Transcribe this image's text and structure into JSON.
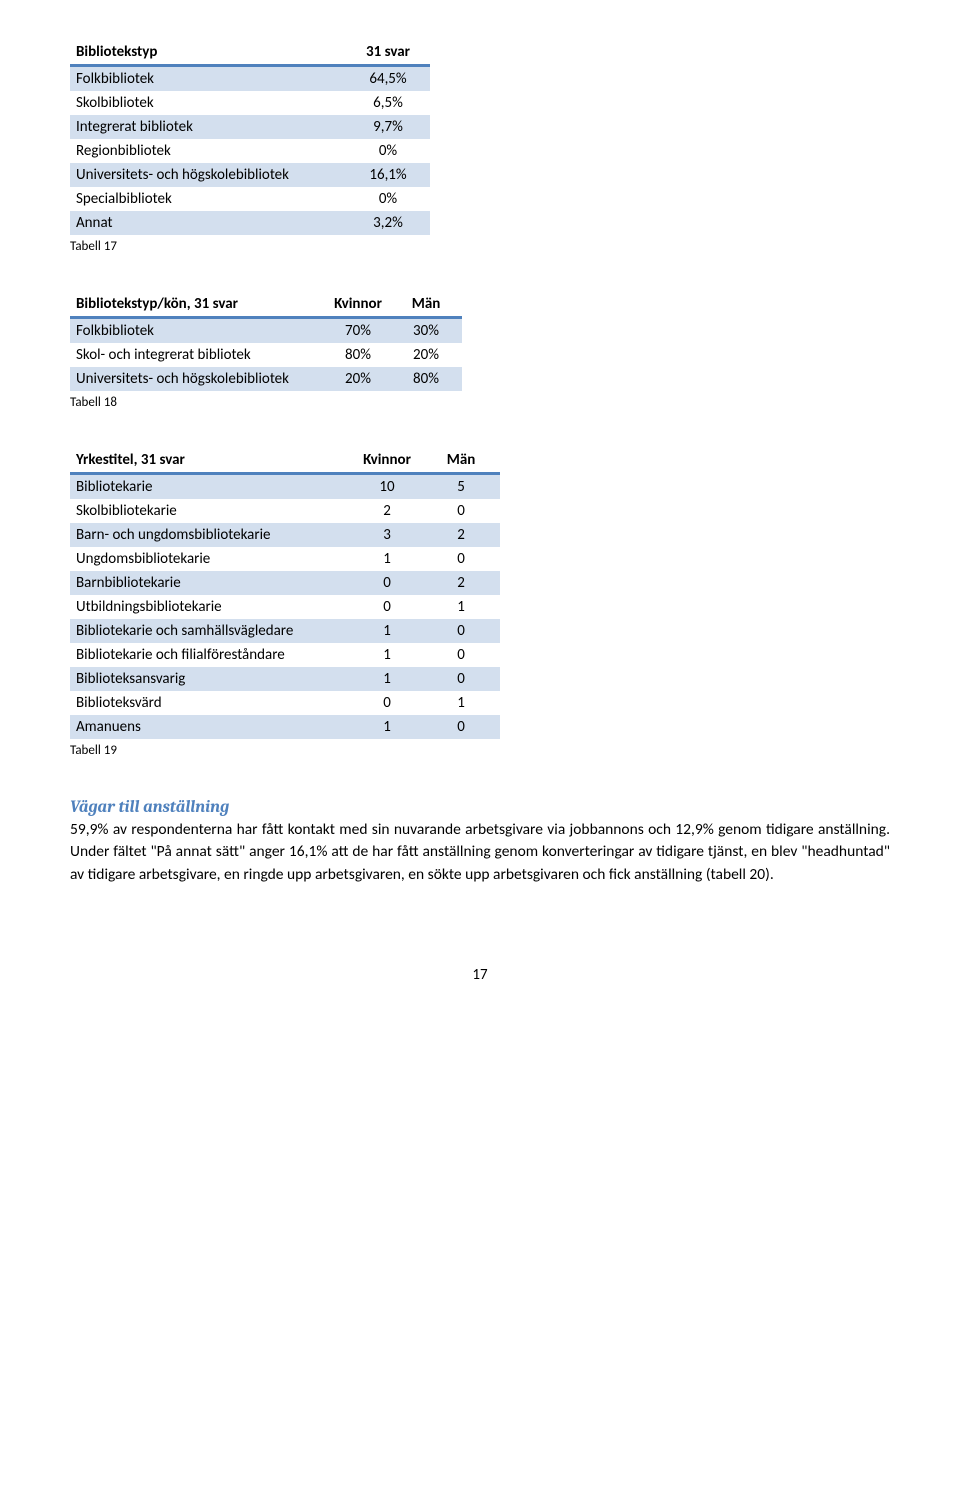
{
  "table1": {
    "header": [
      "Bibliotekstyp",
      "31 svar"
    ],
    "rows": [
      [
        "Folkbibliotek",
        "64,5%"
      ],
      [
        "Skolbibliotek",
        "6,5%"
      ],
      [
        "Integrerat bibliotek",
        "9,7%"
      ],
      [
        "Regionbibliotek",
        "0%"
      ],
      [
        "Universitets- och högskolebibliotek",
        "16,1%"
      ],
      [
        "Specialbibliotek",
        "0%"
      ],
      [
        "Annat",
        "3,2%"
      ]
    ],
    "caption": "Tabell 17"
  },
  "table2": {
    "header": [
      "Bibliotekstyp/kön, 31 svar",
      "Kvinnor",
      "Män"
    ],
    "rows": [
      [
        "Folkbibliotek",
        "70%",
        "30%"
      ],
      [
        "Skol- och integrerat bibliotek",
        "80%",
        "20%"
      ],
      [
        "Universitets- och högskolebibliotek",
        "20%",
        "80%"
      ]
    ],
    "caption": "Tabell 18"
  },
  "table3": {
    "header": [
      "Yrkestitel,  31 svar",
      "Kvinnor",
      "Män"
    ],
    "rows": [
      [
        "Bibliotekarie",
        "10",
        "5"
      ],
      [
        "Skolbibliotekarie",
        "2",
        "0"
      ],
      [
        "Barn- och ungdomsbibliotekarie",
        "3",
        "2"
      ],
      [
        "Ungdomsbibliotekarie",
        "1",
        "0"
      ],
      [
        "Barnbibliotekarie",
        "0",
        "2"
      ],
      [
        "Utbildningsbibliotekarie",
        "0",
        "1"
      ],
      [
        "Bibliotekarie och samhällsvägledare",
        "1",
        "0"
      ],
      [
        "Bibliotekarie och filialföreståndare",
        "1",
        "0"
      ],
      [
        "Biblioteksansvarig",
        "1",
        "0"
      ],
      [
        "Biblioteksvärd",
        "0",
        "1"
      ],
      [
        "Amanuens",
        "1",
        "0"
      ]
    ],
    "caption": "Tabell 19"
  },
  "section": {
    "heading": "Vägar till anställning",
    "paragraph": "59,9% av respondenterna har fått kontakt med sin nuvarande arbetsgivare via jobbannons och 12,9% genom tidigare anställning. Under fältet \"På annat sätt\" anger 16,1% att de har fått anställning genom konverteringar av tidigare tjänst, en blev \"headhuntad\" av tidigare arbetsgivare, en ringde upp arbetsgivaren, en sökte upp arbetsgivaren och fick anställning (tabell 20)."
  },
  "pagenum": "17",
  "colors": {
    "accent": "#4f81bd",
    "stripe": "#d3dfee",
    "text": "#000000",
    "bg": "#ffffff"
  }
}
